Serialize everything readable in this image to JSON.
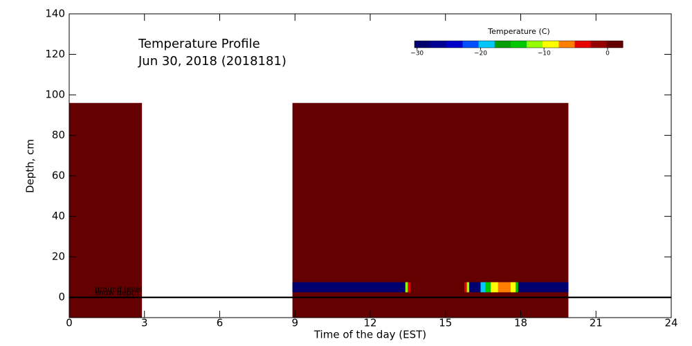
{
  "chart_data": {
    "type": "heatmap",
    "title": "Temperature Profile",
    "subtitle": "Jun 30, 2018 (2018181)",
    "xlabel": "Time of the day (EST)",
    "ylabel": "Depth, cm",
    "xlim": [
      0,
      24
    ],
    "xticks": [
      0,
      3,
      6,
      9,
      12,
      15,
      18,
      21,
      24
    ],
    "ylim": [
      -10,
      140
    ],
    "yticks": [
      0,
      20,
      40,
      60,
      80,
      100,
      120,
      140
    ],
    "colorbar": {
      "title": "Temperature (C)",
      "clim": [
        -30.4,
        2.4
      ],
      "colors": [
        "#00006e",
        "#000096",
        "#0000c8",
        "#0050ff",
        "#00c8ff",
        "#00a000",
        "#00c800",
        "#96ff00",
        "#ffff00",
        "#ff8000",
        "#e60000",
        "#960000",
        "#640000"
      ],
      "ticks": [
        {
          "value": -30,
          "label": "−30"
        },
        {
          "value": -20,
          "label": "−20"
        },
        {
          "value": -10,
          "label": "−10"
        },
        0
      ]
    },
    "cells": [
      {
        "x0": 0,
        "x1": 2.9,
        "y0": -10,
        "y1": 96,
        "value": 2
      },
      {
        "x0": 8.9,
        "x1": 19.9,
        "y0": -10,
        "y1": 96,
        "value": 2
      },
      {
        "x0": 8.9,
        "x1": 13.4,
        "y0": 2.5,
        "y1": 7.5,
        "value": -29
      },
      {
        "x0": 13.4,
        "x1": 13.5,
        "y0": 2.5,
        "y1": 7.5,
        "value": -12
      },
      {
        "x0": 13.5,
        "x1": 13.6,
        "y0": 2.5,
        "y1": 7.5,
        "value": -5
      },
      {
        "x0": 15.75,
        "x1": 15.85,
        "y0": 2.5,
        "y1": 7.5,
        "value": -5
      },
      {
        "x0": 15.85,
        "x1": 15.95,
        "y0": 2.5,
        "y1": 7.5,
        "value": -12
      },
      {
        "x0": 15.95,
        "x1": 16.4,
        "y0": 2.5,
        "y1": 7.5,
        "value": -28
      },
      {
        "x0": 16.4,
        "x1": 16.6,
        "y0": 2.5,
        "y1": 7.5,
        "value": -20
      },
      {
        "x0": 16.6,
        "x1": 16.8,
        "y0": 2.5,
        "y1": 7.5,
        "value": -15
      },
      {
        "x0": 16.8,
        "x1": 17.1,
        "y0": 2.5,
        "y1": 7.5,
        "value": -10
      },
      {
        "x0": 17.1,
        "x1": 17.6,
        "y0": 2.5,
        "y1": 7.5,
        "value": -6
      },
      {
        "x0": 17.6,
        "x1": 17.8,
        "y0": 2.5,
        "y1": 7.5,
        "value": -9
      },
      {
        "x0": 17.8,
        "x1": 17.9,
        "y0": 2.5,
        "y1": 7.5,
        "value": -15
      },
      {
        "x0": 17.9,
        "x1": 19.9,
        "y0": 2.5,
        "y1": 7.5,
        "value": -29
      }
    ],
    "lines": [
      {
        "name": "ground level",
        "y": 0
      },
      {
        "name": "snow depth",
        "y": 0
      }
    ]
  }
}
